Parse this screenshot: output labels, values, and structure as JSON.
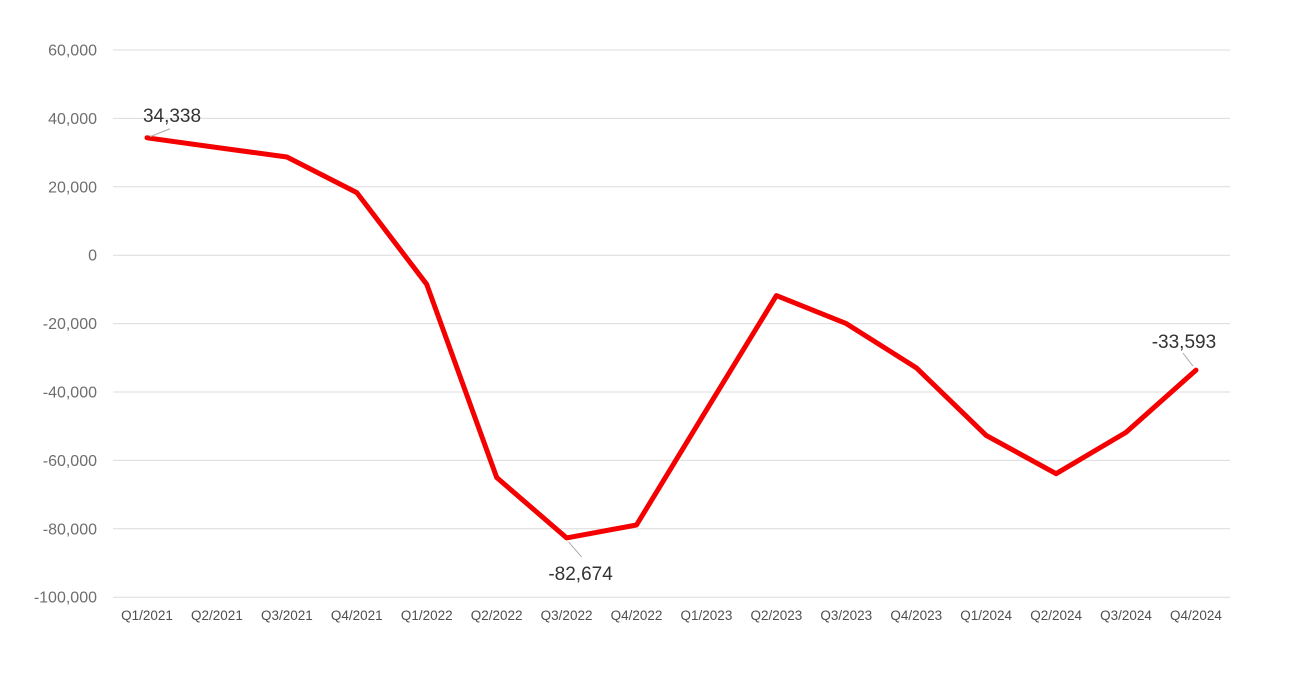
{
  "chart_data": {
    "type": "line",
    "title": "",
    "xlabel": "",
    "ylabel": "",
    "categories": [
      "Q1/2021",
      "Q2/2021",
      "Q3/2021",
      "Q4/2021",
      "Q1/2022",
      "Q2/2022",
      "Q3/2022",
      "Q4/2022",
      "Q1/2023",
      "Q2/2023",
      "Q3/2023",
      "Q4/2023",
      "Q1/2024",
      "Q2/2024",
      "Q3/2024",
      "Q4/2024"
    ],
    "values": [
      34338,
      31500,
      28700,
      18300,
      -8500,
      -65000,
      -82674,
      -78900,
      -45300,
      -11800,
      -20000,
      -32900,
      -52700,
      -63900,
      -51800,
      -33593
    ],
    "ylim": [
      -100000,
      60000
    ],
    "ytick_step": 20000,
    "ytick_labels": [
      "60,000",
      "40,000",
      "20,000",
      "0",
      "-20,000",
      "-40,000",
      "-60,000",
      "-80,000",
      "-100,000"
    ],
    "ytick_values": [
      60000,
      40000,
      20000,
      0,
      -20000,
      -40000,
      -60000,
      -80000,
      -100000
    ],
    "grid": "horizontal",
    "legend": "none",
    "annotations": [
      {
        "index": 0,
        "label": "34,338",
        "placement": "above-right"
      },
      {
        "index": 6,
        "label": "-82,674",
        "placement": "below-right"
      },
      {
        "index": 15,
        "label": "-33,593",
        "placement": "above-left"
      }
    ],
    "colors": {
      "line": "#f40000",
      "grid": "#dcdcdc",
      "ytick_text": "#6e6e6e",
      "xtick_text": "#4f4f4f",
      "annotation_text": "#333333",
      "leader_line": "#aaaaaa",
      "background": "#ffffff"
    }
  }
}
